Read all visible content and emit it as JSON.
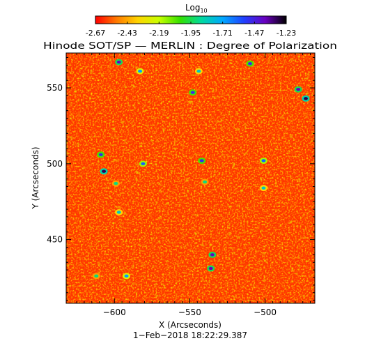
{
  "chart_data": {
    "type": "heatmap",
    "title": "Hinode SOT/SP — MERLIN : Degree of Polarization",
    "colorbar": {
      "title_main": "Log",
      "title_sub": "10",
      "ticks": [
        "-2.67",
        "-2.43",
        "-2.19",
        "-1.95",
        "-1.71",
        "-1.47",
        "-1.23"
      ],
      "range": [
        -2.67,
        -1.23
      ],
      "colormap": [
        "#ff0000",
        "#ff7a00",
        "#ffd400",
        "#c8ff00",
        "#34e000",
        "#00d9a0",
        "#00a8ff",
        "#2040ff",
        "#6a00c0",
        "#000000"
      ]
    },
    "xlabel": "X (Arcseconds)",
    "ylabel": "Y (Arcseconds)",
    "xlim": [
      -632,
      -467
    ],
    "ylim": [
      408,
      573
    ],
    "x_ticks": [
      {
        "value": -600,
        "label": "−600"
      },
      {
        "value": -550,
        "label": "−550"
      },
      {
        "value": -500,
        "label": "−500"
      }
    ],
    "y_ticks": [
      {
        "value": 450,
        "label": "450"
      },
      {
        "value": 500,
        "label": "500"
      },
      {
        "value": 550,
        "label": "550"
      }
    ],
    "timestamp": "1−Feb−2018  18:22:29.387",
    "grid": false,
    "dominant_level": -2.6,
    "features": [
      {
        "x": -597,
        "y": 567,
        "value": -1.4
      },
      {
        "x": -583,
        "y": 561,
        "value": -1.7
      },
      {
        "x": -544,
        "y": 561,
        "value": -1.8
      },
      {
        "x": -510,
        "y": 566,
        "value": -1.5
      },
      {
        "x": -548,
        "y": 547,
        "value": -1.5
      },
      {
        "x": -473,
        "y": 543,
        "value": -1.3
      },
      {
        "x": -478,
        "y": 549,
        "value": -1.4
      },
      {
        "x": -609,
        "y": 506,
        "value": -1.5
      },
      {
        "x": -607,
        "y": 495,
        "value": -1.3
      },
      {
        "x": -581,
        "y": 500,
        "value": -1.6
      },
      {
        "x": -542,
        "y": 502,
        "value": -1.5
      },
      {
        "x": -501,
        "y": 502,
        "value": -1.6
      },
      {
        "x": -599,
        "y": 487,
        "value": -1.9
      },
      {
        "x": -540,
        "y": 488,
        "value": -1.9
      },
      {
        "x": -501,
        "y": 484,
        "value": -1.8
      },
      {
        "x": -597,
        "y": 468,
        "value": -1.8
      },
      {
        "x": -535,
        "y": 440,
        "value": -1.4
      },
      {
        "x": -536,
        "y": 431,
        "value": -1.4
      },
      {
        "x": -592,
        "y": 426,
        "value": -1.7
      },
      {
        "x": -612,
        "y": 426,
        "value": -1.9
      }
    ]
  }
}
